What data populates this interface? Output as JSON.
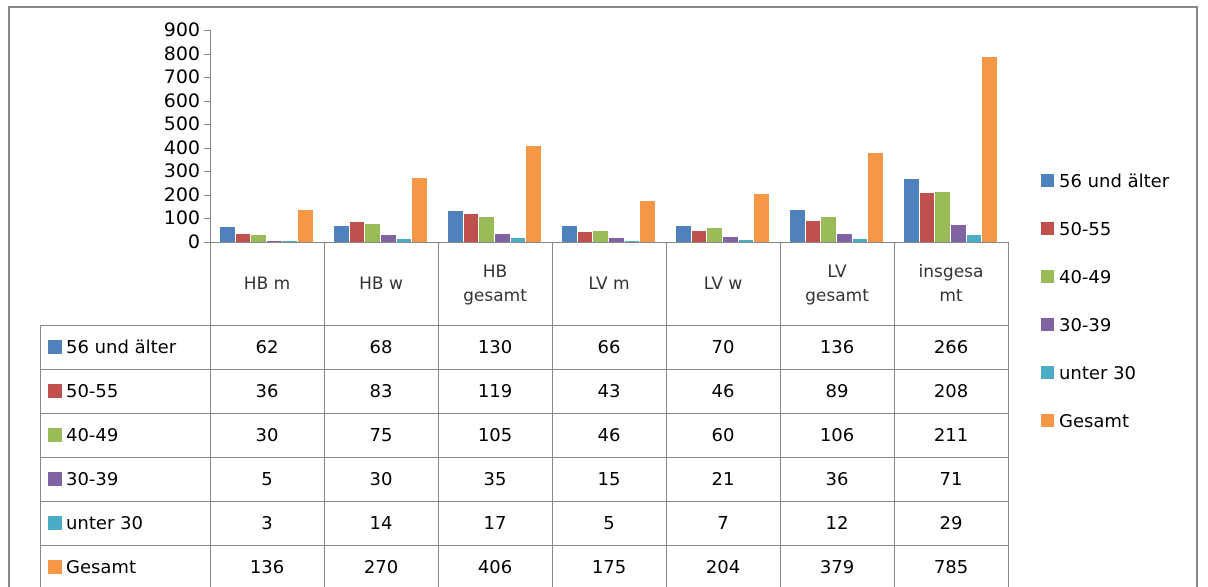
{
  "chart_data": {
    "type": "bar",
    "categories": [
      "HB m",
      "HB w",
      "HB gesamt",
      "LV m",
      "LV w",
      "LV gesamt",
      "insgesamt"
    ],
    "series": [
      {
        "name": "56 und älter",
        "color": "#4f81bd",
        "values": [
          62,
          68,
          130,
          66,
          70,
          136,
          266
        ]
      },
      {
        "name": "50-55",
        "color": "#c0504d",
        "values": [
          36,
          83,
          119,
          43,
          46,
          89,
          208
        ]
      },
      {
        "name": "40-49",
        "color": "#9bbb59",
        "values": [
          30,
          75,
          105,
          46,
          60,
          106,
          211
        ]
      },
      {
        "name": "30-39",
        "color": "#8064a2",
        "values": [
          5,
          30,
          35,
          15,
          21,
          36,
          71
        ]
      },
      {
        "name": "unter 30",
        "color": "#4bacc6",
        "values": [
          3,
          14,
          17,
          5,
          7,
          12,
          29
        ]
      },
      {
        "name": "Gesamt",
        "color": "#f79646",
        "values": [
          136,
          270,
          406,
          175,
          204,
          379,
          785
        ]
      }
    ],
    "ylim": [
      0,
      900
    ],
    "yticks": [
      0,
      100,
      200,
      300,
      400,
      500,
      600,
      700,
      800,
      900
    ],
    "grid": false,
    "legend": "right",
    "data_table": true
  }
}
